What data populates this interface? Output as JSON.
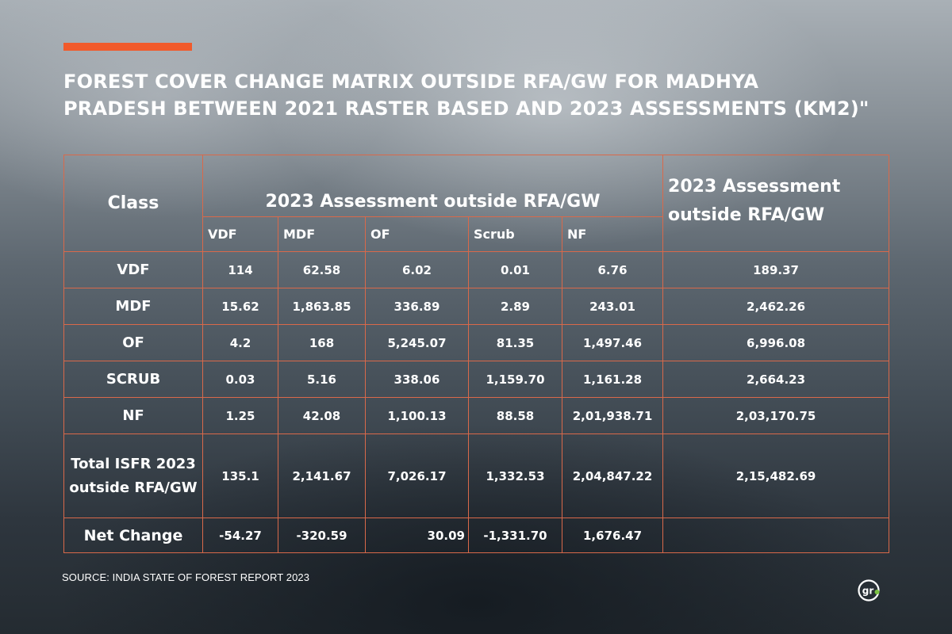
{
  "header": {
    "title_line1": "FOREST COVER CHANGE MATRIX OUTSIDE RFA/GW FOR MADHYA",
    "title_line2": "PRADESH BETWEEN 2021 RASTER BASED AND 2023 ASSESSMENTS  (KM2)\"",
    "accent_color": "#f15a2b"
  },
  "table": {
    "class_header": "Class",
    "group_header": "2023 Assessment outside RFA/GW",
    "total_header": "2023 Assessment outside RFA/GW",
    "columns": [
      "VDF",
      "MDF",
      "OF",
      "Scrub",
      "NF"
    ],
    "rows": [
      {
        "label": "VDF",
        "values": [
          "114",
          "62.58",
          "6.02",
          "0.01",
          "6.76"
        ],
        "total": "189.37"
      },
      {
        "label": "MDF",
        "values": [
          "15.62",
          "1,863.85",
          "336.89",
          "2.89",
          "243.01"
        ],
        "total": "2,462.26"
      },
      {
        "label": "OF",
        "values": [
          "4.2",
          "168",
          "5,245.07",
          "81.35",
          "1,497.46"
        ],
        "total": "6,996.08"
      },
      {
        "label": "SCRUB",
        "values": [
          "0.03",
          "5.16",
          "338.06",
          "1,159.70",
          "1,161.28"
        ],
        "total": "2,664.23"
      },
      {
        "label": "NF",
        "values": [
          "1.25",
          "42.08",
          "1,100.13",
          "88.58",
          "2,01,938.71"
        ],
        "total": "2,03,170.75"
      },
      {
        "label": "Total ISFR 2023 outside RFA/GW",
        "values": [
          "135.1",
          "2,141.67",
          "7,026.17",
          "1,332.53",
          "2,04,847.22"
        ],
        "total": "2,15,482.69"
      }
    ],
    "net_change": {
      "label": "Net Change",
      "values": [
        "-54.27",
        "-320.59",
        "30.09",
        "-1,331.70",
        "1,676.47"
      ],
      "total": ""
    },
    "border_color": "#d9694a"
  },
  "chart_data": {
    "type": "table",
    "title": "FOREST COVER CHANGE MATRIX OUTSIDE RFA/GW FOR MADHYA PRADESH BETWEEN 2021 RASTER BASED AND 2023 ASSESSMENTS  (KM2)\"",
    "columns": [
      "Class",
      "VDF",
      "MDF",
      "OF",
      "Scrub",
      "NF",
      "2023 Assessment outside RFA/GW"
    ],
    "rows": [
      [
        "VDF",
        114,
        62.58,
        6.02,
        0.01,
        6.76,
        189.37
      ],
      [
        "MDF",
        15.62,
        1863.85,
        336.89,
        2.89,
        243.01,
        2462.26
      ],
      [
        "OF",
        4.2,
        168,
        5245.07,
        81.35,
        1497.46,
        6996.08
      ],
      [
        "SCRUB",
        0.03,
        5.16,
        338.06,
        1159.7,
        1161.28,
        2664.23
      ],
      [
        "NF",
        1.25,
        42.08,
        1100.13,
        88.58,
        201938.71,
        203170.75
      ],
      [
        "Total ISFR 2023 outside RFA/GW",
        135.1,
        2141.67,
        7026.17,
        1332.53,
        204847.22,
        215482.69
      ],
      [
        "Net Change",
        -54.27,
        -320.59,
        30.09,
        -1331.7,
        1676.47,
        null
      ]
    ]
  },
  "footer": {
    "source": "SOURCE: INDIA STATE OF FOREST REPORT 2023",
    "logo_text": "gr",
    "logo_dot_color": "#7bc142"
  }
}
